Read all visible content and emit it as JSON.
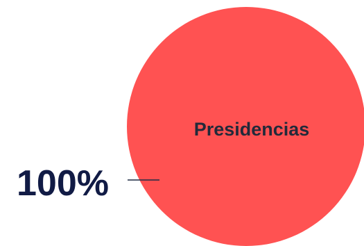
{
  "chart_data": {
    "type": "pie",
    "title": "",
    "legend": "none",
    "slices": [
      {
        "label": "Presidencias",
        "value": 100,
        "value_label": "100%",
        "color": "#ff5252"
      }
    ]
  },
  "colors": {
    "label_text": "#222a3a",
    "value_text": "#111b45",
    "leader_line": "#1f2a44"
  }
}
